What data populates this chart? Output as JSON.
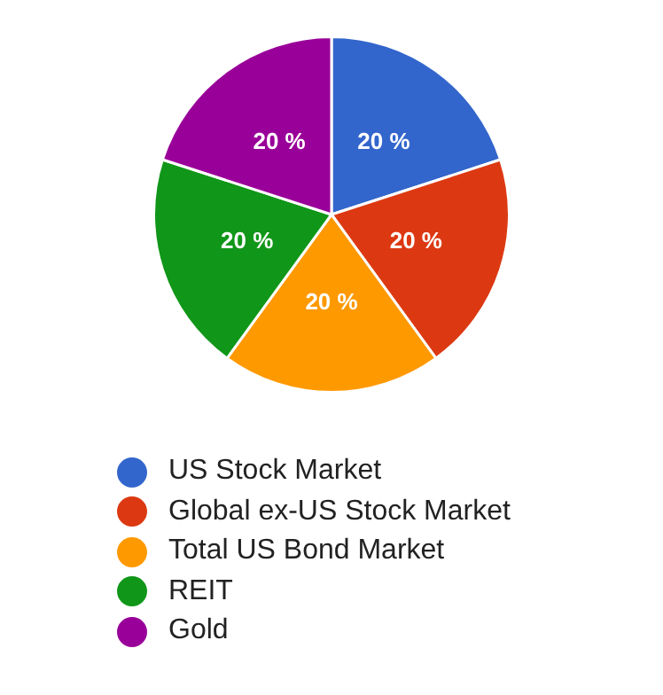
{
  "chart_data": {
    "type": "pie",
    "categories": [
      "US Stock Market",
      "Global ex-US Stock Market",
      "Total US Bond Market",
      "REIT",
      "Gold"
    ],
    "values": [
      20,
      20,
      20,
      20,
      20
    ],
    "colors": [
      "#3366cc",
      "#dc3912",
      "#ff9900",
      "#109618",
      "#990099"
    ],
    "value_labels": [
      "20 %",
      "20 %",
      "20 %",
      "20 %",
      "20 %"
    ],
    "legend": "bottom"
  }
}
